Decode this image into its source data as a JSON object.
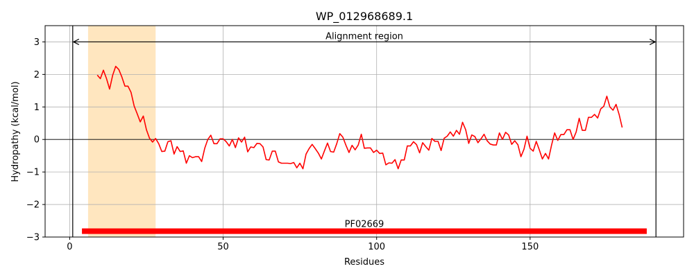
{
  "chart_data": {
    "type": "line",
    "title": "WP_012968689.1",
    "xlabel": "Residues",
    "ylabel": "Hydropathy (kcal/mol)",
    "xlim": [
      -8,
      200
    ],
    "ylim": [
      -3,
      3.5
    ],
    "xticks": [
      0,
      50,
      100,
      150
    ],
    "yticks": [
      3,
      2,
      1,
      0,
      -1,
      -2,
      -3
    ],
    "ytick_labels": [
      "3",
      "2",
      "1",
      "0",
      "−1",
      "−2",
      "−3"
    ],
    "grid": true,
    "series": [
      {
        "color": "#ff0000",
        "x": [
          9,
          10,
          11,
          12,
          13,
          14,
          15,
          16,
          17,
          18,
          19,
          20,
          21,
          22,
          23,
          24,
          25,
          26,
          27,
          28,
          29,
          30,
          31,
          32,
          33,
          34,
          35,
          36,
          37,
          38,
          39,
          40,
          41,
          42,
          43,
          44,
          45,
          46,
          47,
          48,
          49,
          50,
          51,
          52,
          53,
          54,
          55,
          56,
          57,
          58,
          59,
          60,
          61,
          62,
          63,
          64,
          65,
          66,
          67,
          68,
          69,
          70,
          71,
          72,
          73,
          74,
          75,
          76,
          77,
          78,
          79,
          80,
          81,
          82,
          83,
          84,
          85,
          86,
          87,
          88,
          89,
          90,
          91,
          92,
          93,
          94,
          95,
          96,
          97,
          98,
          99,
          100,
          101,
          102,
          103,
          104,
          105,
          106,
          107,
          108,
          109,
          110,
          111,
          112,
          113,
          114,
          115,
          116,
          117,
          118,
          119,
          120,
          121,
          122,
          123,
          124,
          125,
          126,
          127,
          128,
          129,
          130,
          131,
          132,
          133,
          134,
          135,
          136,
          137,
          138,
          139,
          140,
          141,
          142,
          143,
          144,
          145,
          146,
          147,
          148,
          149,
          150,
          151,
          152,
          153,
          154,
          155,
          156,
          157,
          158,
          159,
          160,
          161,
          162,
          163,
          164,
          165,
          166,
          167,
          168,
          169,
          170,
          171,
          172,
          173,
          174,
          175,
          176,
          177,
          178,
          179,
          180
        ],
        "y": [
          1.98,
          1.87,
          2.13,
          1.87,
          1.55,
          1.97,
          2.25,
          2.15,
          1.92,
          1.64,
          1.64,
          1.45,
          1.03,
          0.79,
          0.54,
          0.72,
          0.3,
          0.04,
          -0.08,
          0.03,
          -0.13,
          -0.37,
          -0.36,
          -0.07,
          -0.04,
          -0.45,
          -0.22,
          -0.37,
          -0.35,
          -0.73,
          -0.5,
          -0.56,
          -0.53,
          -0.53,
          -0.68,
          -0.27,
          0.0,
          0.13,
          -0.13,
          -0.13,
          0.02,
          0.02,
          -0.07,
          -0.2,
          0.0,
          -0.25,
          0.05,
          -0.08,
          0.07,
          -0.38,
          -0.23,
          -0.25,
          -0.12,
          -0.13,
          -0.23,
          -0.62,
          -0.63,
          -0.36,
          -0.36,
          -0.69,
          -0.73,
          -0.73,
          -0.73,
          -0.74,
          -0.71,
          -0.87,
          -0.73,
          -0.9,
          -0.45,
          -0.28,
          -0.15,
          -0.28,
          -0.42,
          -0.6,
          -0.35,
          -0.11,
          -0.37,
          -0.39,
          -0.13,
          0.18,
          0.07,
          -0.18,
          -0.4,
          -0.18,
          -0.32,
          -0.17,
          0.16,
          -0.27,
          -0.26,
          -0.26,
          -0.4,
          -0.33,
          -0.43,
          -0.42,
          -0.78,
          -0.72,
          -0.73,
          -0.62,
          -0.9,
          -0.63,
          -0.63,
          -0.2,
          -0.2,
          -0.07,
          -0.16,
          -0.41,
          -0.1,
          -0.22,
          -0.33,
          0.03,
          -0.06,
          -0.06,
          -0.34,
          0.04,
          0.1,
          0.23,
          0.1,
          0.28,
          0.16,
          0.53,
          0.3,
          -0.12,
          0.14,
          0.09,
          -0.1,
          0.02,
          0.16,
          -0.04,
          -0.14,
          -0.17,
          -0.17,
          0.2,
          0.0,
          0.22,
          0.14,
          -0.15,
          -0.04,
          -0.16,
          -0.53,
          -0.3,
          0.1,
          -0.27,
          -0.36,
          -0.06,
          -0.32,
          -0.6,
          -0.43,
          -0.6,
          -0.17,
          0.2,
          -0.03,
          0.15,
          0.15,
          0.3,
          0.3,
          0.0,
          0.23,
          0.65,
          0.28,
          0.28,
          0.68,
          0.68,
          0.77,
          0.66,
          0.94,
          1.02,
          1.33,
          1.0,
          0.9,
          1.08,
          0.77,
          0.37
        ]
      }
    ],
    "shaded_region": {
      "x_start": 6,
      "x_end": 28,
      "color": "#ffe6bf"
    },
    "vlines": [
      1,
      191
    ],
    "hline": 0,
    "annotations": [
      {
        "text": "Alignment region",
        "x_start": 1,
        "x_end": 191,
        "y": 3,
        "arrow": "double"
      },
      {
        "text": "PF02669",
        "x_start": 4,
        "x_end": 188,
        "y": -2.82,
        "bar_color": "#ff0000"
      }
    ]
  }
}
